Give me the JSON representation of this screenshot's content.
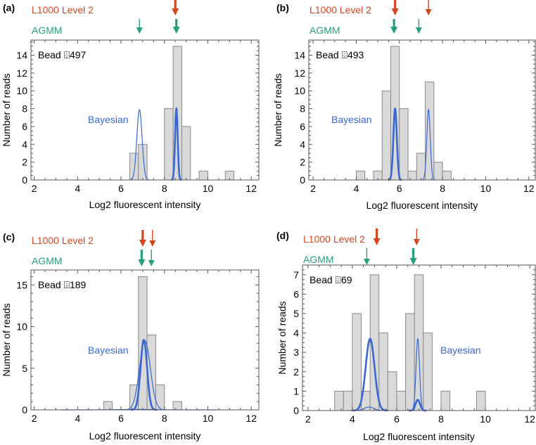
{
  "colors": {
    "l1000": "#d4461d",
    "agmm": "#27a07a",
    "bayesian": "#3a68d2",
    "bar_fill": "#d9d9d9",
    "bar_stroke": "#8a8a8a"
  },
  "legend": {
    "l1000": "L1000 Level 2",
    "agmm": "AGMM",
    "bayesian": "Bayesian"
  },
  "chart_data": [
    {
      "type": "bar",
      "panel_label": "(a)",
      "title": "Bead ⌹497",
      "xlabel": "Log2 fluorescent intensity",
      "ylabel": "Number of reads",
      "xlim": [
        1.85,
        12.35
      ],
      "ylim": [
        0,
        15.7
      ],
      "xticks": [
        2,
        4,
        6,
        8,
        10,
        12
      ],
      "yticks": [
        0,
        2,
        4,
        6,
        8,
        10,
        12,
        14
      ],
      "bin_width": 0.4,
      "bins": [
        [
          6.4,
          3
        ],
        [
          6.8,
          4
        ],
        [
          8.0,
          8
        ],
        [
          8.4,
          15
        ],
        [
          8.8,
          6
        ],
        [
          9.6,
          1
        ],
        [
          10.8,
          1
        ]
      ],
      "bayesian_curves": [
        {
          "mean": 6.85,
          "sd": 0.12,
          "peak": 7.9,
          "weight": "thin"
        },
        {
          "mean": 8.55,
          "sd": 0.06,
          "peak": 8,
          "weight": "thick"
        }
      ],
      "l1000_arrows": [
        {
          "x": 8.5,
          "weight": "thick"
        }
      ],
      "agmm_arrows": [
        {
          "x": 6.85,
          "weight": "thin"
        },
        {
          "x": 8.55,
          "weight": "thick"
        }
      ]
    },
    {
      "type": "bar",
      "panel_label": "(b)",
      "title": "Bead ⌹493",
      "xlabel": "Log2 fluorescent intensity",
      "ylabel": "Number of reads",
      "xlim": [
        1.8,
        12.3
      ],
      "ylim": [
        0,
        15.7
      ],
      "xticks": [
        2,
        4,
        6,
        8,
        10,
        12
      ],
      "yticks": [
        0,
        2,
        4,
        6,
        8,
        10,
        12,
        14
      ],
      "bin_width": 0.4,
      "bins": [
        [
          4.0,
          1
        ],
        [
          4.8,
          1
        ],
        [
          5.2,
          10
        ],
        [
          5.6,
          15
        ],
        [
          6.0,
          8
        ],
        [
          6.4,
          1
        ],
        [
          6.8,
          3
        ],
        [
          7.2,
          11
        ],
        [
          7.6,
          2
        ],
        [
          8.0,
          1
        ]
      ],
      "bayesian_curves": [
        {
          "mean": 5.8,
          "sd": 0.08,
          "peak": 8,
          "weight": "thick"
        },
        {
          "mean": 7.35,
          "sd": 0.08,
          "peak": 7.9,
          "weight": "thin"
        }
      ],
      "l1000_arrows": [
        {
          "x": 5.8,
          "weight": "thick"
        },
        {
          "x": 7.35,
          "weight": "thin"
        }
      ],
      "agmm_arrows": [
        {
          "x": 5.75,
          "weight": "thick"
        },
        {
          "x": 6.9,
          "weight": "thin"
        }
      ]
    },
    {
      "type": "bar",
      "panel_label": "(c)",
      "title": "Bead ⌹189",
      "xlabel": "Log2 fluorescent intensity",
      "ylabel": "Number of reads",
      "xlim": [
        1.85,
        12.35
      ],
      "ylim": [
        0,
        16.8
      ],
      "xticks": [
        2,
        4,
        6,
        8,
        10,
        12
      ],
      "yticks": [
        0,
        5,
        10,
        15
      ],
      "bin_width": 0.4,
      "bins": [
        [
          5.2,
          1
        ],
        [
          6.4,
          3
        ],
        [
          6.8,
          16
        ],
        [
          7.2,
          9
        ],
        [
          7.6,
          3
        ],
        [
          8.4,
          1
        ]
      ],
      "bayesian_curves": [
        {
          "mean": 7.05,
          "sd": 0.15,
          "peak": 8.4,
          "weight": "thick"
        },
        {
          "mean": 7.1,
          "sd": 0.25,
          "peak": 8.3,
          "weight": "thin"
        },
        {
          "mean": 6.8,
          "sd": 0.9,
          "peak": 0.05,
          "weight": "thin"
        }
      ],
      "l1000_arrows": [
        {
          "x": 7.0,
          "weight": "thick"
        },
        {
          "x": 7.45,
          "weight": "thin"
        }
      ],
      "agmm_arrows": [
        {
          "x": 6.95,
          "weight": "thick"
        },
        {
          "x": 7.4,
          "weight": "thin"
        }
      ]
    },
    {
      "type": "bar",
      "panel_label": "(d)",
      "title": "Bead ⌹69",
      "xlabel": "Log2 fluorescent intensity",
      "ylabel": "Number of reads",
      "xlim": [
        1.75,
        12.25
      ],
      "ylim": [
        0,
        7.5
      ],
      "xticks": [
        2,
        4,
        6,
        8,
        10,
        12
      ],
      "yticks": [
        0,
        1,
        2,
        3,
        4,
        5,
        6,
        7
      ],
      "bin_width": 0.4,
      "bins": [
        [
          3.2,
          1
        ],
        [
          3.6,
          1
        ],
        [
          4.0,
          5
        ],
        [
          4.4,
          1
        ],
        [
          4.8,
          7
        ],
        [
          5.2,
          4
        ],
        [
          5.6,
          2
        ],
        [
          6.0,
          1
        ],
        [
          6.4,
          5
        ],
        [
          6.8,
          7
        ],
        [
          7.2,
          4
        ],
        [
          8.0,
          1
        ],
        [
          9.6,
          1
        ]
      ],
      "bayesian_curves": [
        {
          "mean": 4.8,
          "sd": 0.2,
          "peak": 3.7,
          "weight": "thick"
        },
        {
          "mean": 6.95,
          "sd": 0.1,
          "peak": 0.55,
          "weight": "thick"
        },
        {
          "mean": 6.95,
          "sd": 0.08,
          "peak": 3.7,
          "weight": "thin"
        },
        {
          "mean": 4.75,
          "sd": 0.22,
          "peak": 0.18,
          "weight": "thin"
        }
      ],
      "l1000_arrows": [
        {
          "x": 5.1,
          "weight": "thick"
        },
        {
          "x": 6.9,
          "weight": "thin"
        }
      ],
      "agmm_arrows": [
        {
          "x": 4.65,
          "weight": "thin"
        },
        {
          "x": 6.75,
          "weight": "thick"
        }
      ]
    }
  ]
}
